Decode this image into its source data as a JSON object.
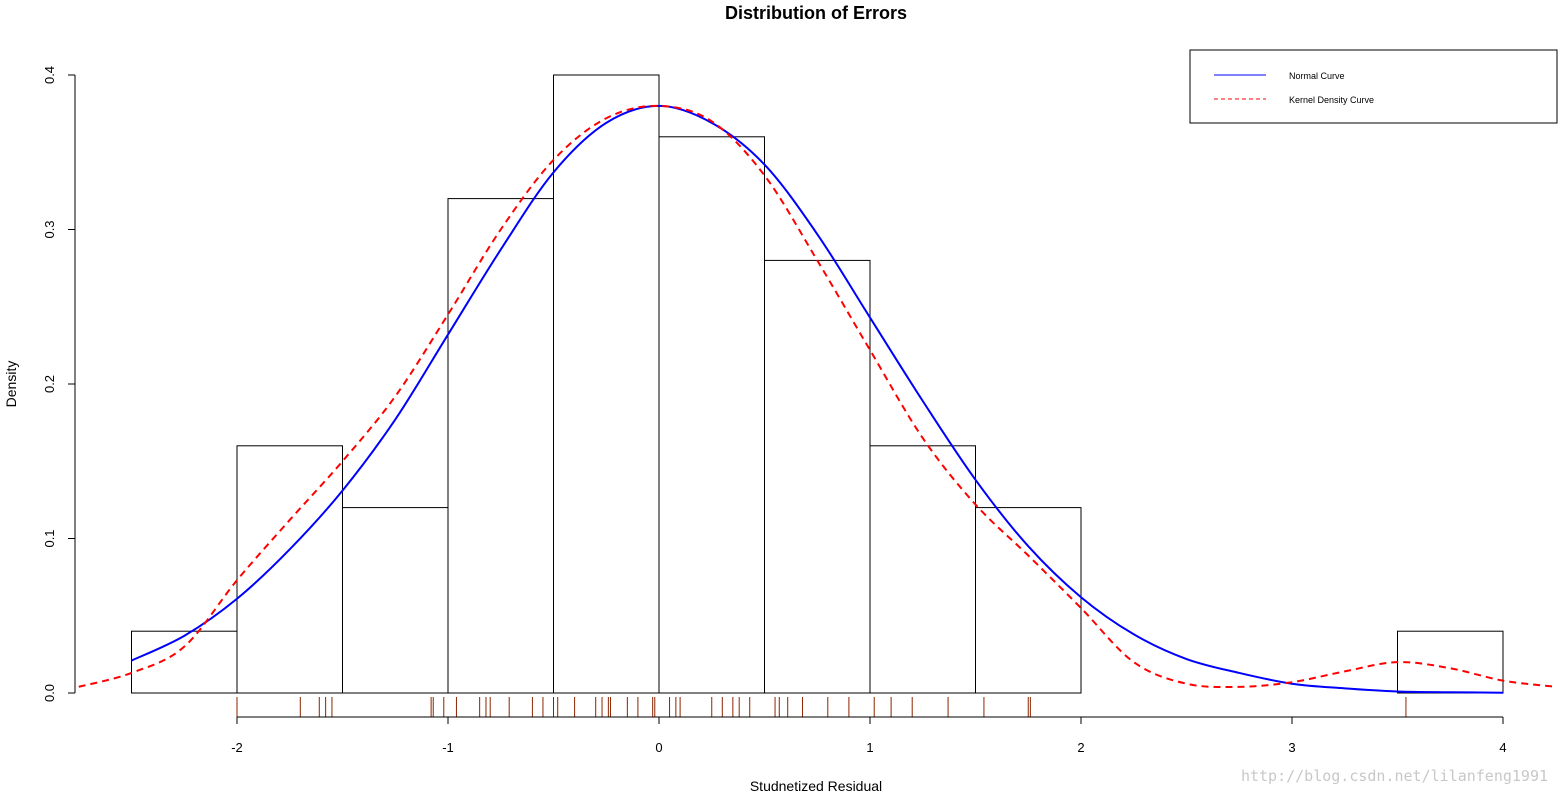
{
  "chart_data": {
    "type": "histogram",
    "title": "Distribution of Errors",
    "xlabel": "Studnetized Residual",
    "ylabel": "Density",
    "xlim": [
      -2.75,
      4.25
    ],
    "ylim": [
      0,
      0.4
    ],
    "x_ticks": [
      -2,
      -1,
      0,
      1,
      2,
      3,
      4
    ],
    "x_tick_labels": [
      "-2",
      "-1",
      "0",
      "1",
      "2",
      "3",
      "4"
    ],
    "y_ticks": [
      0.0,
      0.1,
      0.2,
      0.3,
      0.4
    ],
    "y_tick_labels": [
      "0.0",
      "0.1",
      "0.2",
      "0.3",
      "0.4"
    ],
    "histogram": {
      "bin_edges": [
        -2.5,
        -2.0,
        -1.5,
        -1.0,
        -0.5,
        0.0,
        0.5,
        1.0,
        1.5,
        2.0,
        2.5,
        3.0,
        3.5,
        4.0
      ],
      "densities": [
        0.04,
        0.16,
        0.12,
        0.32,
        0.4,
        0.36,
        0.28,
        0.16,
        0.12,
        0.0,
        0.0,
        0.0,
        0.04
      ],
      "border_color": "#000000"
    },
    "series": [
      {
        "name": "Normal Curve",
        "style": "solid",
        "color": "#0000ff",
        "x": [
          -2.5,
          -2.25,
          -2.0,
          -1.75,
          -1.5,
          -1.25,
          -1.0,
          -0.75,
          -0.5,
          -0.25,
          0.0,
          0.25,
          0.5,
          0.75,
          1.0,
          1.25,
          1.5,
          1.75,
          2.0,
          2.25,
          2.5,
          2.75,
          3.0,
          3.25,
          3.5,
          3.75,
          4.0
        ],
        "y": [
          0.021,
          0.037,
          0.061,
          0.093,
          0.131,
          0.177,
          0.232,
          0.287,
          0.337,
          0.369,
          0.38,
          0.369,
          0.342,
          0.297,
          0.243,
          0.189,
          0.138,
          0.095,
          0.062,
          0.038,
          0.022,
          0.013,
          0.006,
          0.003,
          0.001,
          0.0005,
          0.0002
        ]
      },
      {
        "name": "Kernel Density Curve",
        "style": "dashed",
        "color": "#ff0000",
        "x": [
          -2.75,
          -2.5,
          -2.25,
          -2.0,
          -1.75,
          -1.5,
          -1.25,
          -1.0,
          -0.75,
          -0.5,
          -0.25,
          0.0,
          0.25,
          0.5,
          0.75,
          1.0,
          1.25,
          1.5,
          1.75,
          2.0,
          2.25,
          2.5,
          2.75,
          3.0,
          3.25,
          3.5,
          3.75,
          4.0,
          4.25
        ],
        "y": [
          0.004,
          0.013,
          0.03,
          0.073,
          0.112,
          0.15,
          0.192,
          0.245,
          0.3,
          0.345,
          0.372,
          0.38,
          0.37,
          0.335,
          0.28,
          0.222,
          0.165,
          0.122,
          0.089,
          0.055,
          0.02,
          0.006,
          0.004,
          0.007,
          0.014,
          0.02,
          0.016,
          0.008,
          0.004
        ]
      }
    ],
    "rug": {
      "color": "#8b2500",
      "values": [
        -2.0,
        -1.7,
        -1.61,
        -1.58,
        -1.55,
        -1.08,
        -1.07,
        -1.02,
        -0.96,
        -0.85,
        -0.82,
        -0.8,
        -0.71,
        -0.6,
        -0.55,
        -0.5,
        -0.48,
        -0.4,
        -0.3,
        -0.27,
        -0.24,
        -0.23,
        -0.15,
        -0.1,
        -0.03,
        -0.02,
        0.05,
        0.08,
        0.1,
        0.25,
        0.3,
        0.35,
        0.38,
        0.43,
        0.55,
        0.57,
        0.61,
        0.68,
        0.8,
        0.9,
        1.02,
        1.1,
        1.2,
        1.37,
        1.54,
        1.75,
        1.76,
        3.54
      ]
    },
    "legend": {
      "position": "top-right",
      "items": [
        {
          "label": "Normal Curve",
          "color": "#0000ff",
          "style": "solid"
        },
        {
          "label": "Kernel Density Curve",
          "color": "#ff0000",
          "style": "dashed"
        }
      ]
    },
    "grid": false
  },
  "watermark": "http://blog.csdn.net/lilanfeng1991"
}
